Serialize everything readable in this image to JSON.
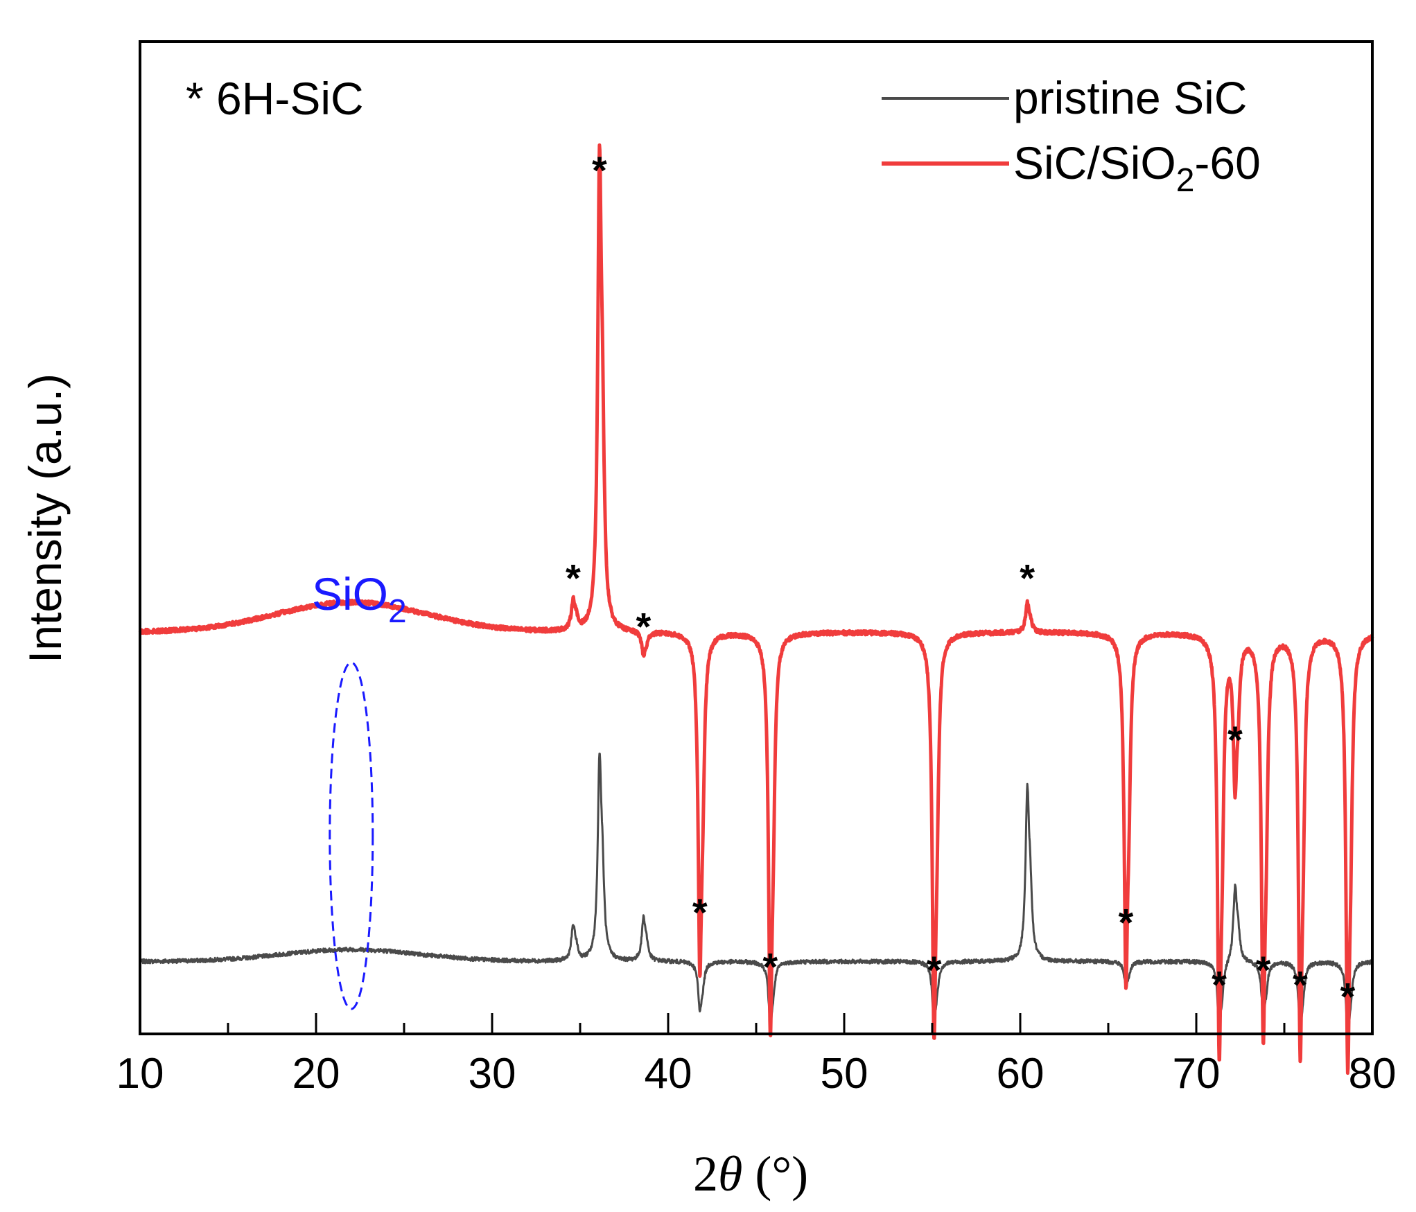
{
  "chart_data": {
    "type": "line",
    "xlabel": "2θ (°)",
    "ylabel": "Intensity (a.u.)",
    "xlim": [
      10,
      80
    ],
    "ylim": [
      0,
      1
    ],
    "x_ticks": [
      "10",
      "20",
      "30",
      "40",
      "50",
      "60",
      "70",
      "80"
    ],
    "legend": {
      "placement": "top-right"
    },
    "grid": false,
    "series": [
      {
        "name": "pristine SiC",
        "color": "#4a4a4a",
        "baseline": 0.073,
        "amorphous_hump": {
          "center": 22,
          "width": 5.5,
          "height": 0.012
        },
        "peaks": [
          {
            "x": 34.6,
            "y": 0.105
          },
          {
            "x": 36.1,
            "y": 0.262
          },
          {
            "x": 38.6,
            "y": 0.113
          },
          {
            "x": 41.8,
            "y": 0.028
          },
          {
            "x": 45.8,
            "y": 0.015
          },
          {
            "x": 55.1,
            "y": 0.018
          },
          {
            "x": 60.4,
            "y": 0.232
          },
          {
            "x": 66.0,
            "y": 0.05
          },
          {
            "x": 71.3,
            "y": 0.012
          },
          {
            "x": 72.2,
            "y": 0.143
          },
          {
            "x": 73.8,
            "y": 0.022
          },
          {
            "x": 75.9,
            "y": 0.012
          },
          {
            "x": 78.6,
            "y": 0.006
          }
        ]
      },
      {
        "name": "SiC/SiO₂-60",
        "color": "#f03c3c",
        "baseline": 0.405,
        "amorphous_hump": {
          "center": 22,
          "width": 6,
          "height": 0.03
        },
        "peaks": [
          {
            "x": 34.6,
            "y": 0.432
          },
          {
            "x": 36.1,
            "y": 0.843
          },
          {
            "x": 38.6,
            "y": 0.383
          },
          {
            "x": 41.8,
            "y": 0.095
          },
          {
            "x": 45.8,
            "y": 0.04
          },
          {
            "x": 55.1,
            "y": 0.037
          },
          {
            "x": 60.4,
            "y": 0.432
          },
          {
            "x": 66.0,
            "y": 0.085
          },
          {
            "x": 71.3,
            "y": 0.022
          },
          {
            "x": 72.2,
            "y": 0.269
          },
          {
            "x": 73.8,
            "y": 0.037
          },
          {
            "x": 75.9,
            "y": 0.022
          },
          {
            "x": 78.6,
            "y": 0.01
          }
        ]
      }
    ],
    "annotations": [
      {
        "text": "* 6H-SiC"
      },
      {
        "text": "SiO",
        "subscript": "2",
        "color": "#1a1aff",
        "x": 22
      }
    ],
    "peak_marker": {
      "symbol": "*",
      "x": [
        34.6,
        36.1,
        38.6,
        41.8,
        45.8,
        55.1,
        60.4,
        66.0,
        71.3,
        72.2,
        73.8,
        75.9,
        78.6
      ]
    }
  }
}
